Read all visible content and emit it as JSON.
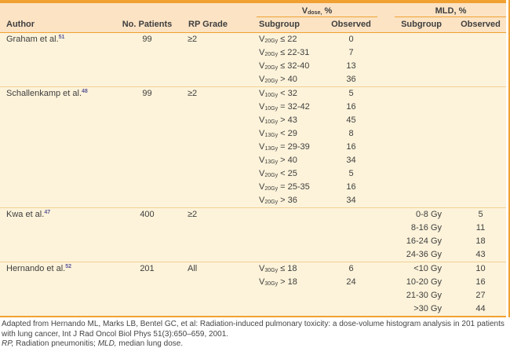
{
  "colors": {
    "accent": "#F0A132",
    "header_bg": "#FBE3C4",
    "body_bg": "#FDF3DA",
    "separator": "#F0D096",
    "ref": "#5B5898",
    "text": "#3E3E3E",
    "footer_text": "#454545"
  },
  "table": {
    "header": {
      "vdose_base": "V",
      "vdose_sub": "dose,",
      "vdose_rest": " %",
      "mld_group": "MLD, %",
      "author": "Author",
      "no_patients": "No. Patients",
      "rp_grade": "RP Grade",
      "v_subgroup": "Subgroup",
      "v_observed": "Observed",
      "mld_subgroup": "Subgroup",
      "mld_observed": "Observed"
    },
    "groups": [
      {
        "author": "Graham et al.",
        "ref": "51",
        "patients": "99",
        "rp_grade": "≥2",
        "rows": [
          {
            "v_base": "V",
            "v_sub": "20Gy",
            "v_cond": "≤ 22",
            "v_obs": "0"
          },
          {
            "v_base": "V",
            "v_sub": "20Gy",
            "v_cond": "≤ 22-31",
            "v_obs": "7"
          },
          {
            "v_base": "V",
            "v_sub": "20Gy",
            "v_cond": "≤ 32-40",
            "v_obs": "13"
          },
          {
            "v_base": "V",
            "v_sub": "20Gy",
            "v_cond": "> 40",
            "v_obs": "36"
          }
        ]
      },
      {
        "author": "Schallenkamp et al.",
        "ref": "48",
        "patients": "99",
        "rp_grade": "≥2",
        "rows": [
          {
            "v_base": "V",
            "v_sub": "10Gy",
            "v_cond": "< 32",
            "v_obs": "5"
          },
          {
            "v_base": "V",
            "v_sub": "10Gy",
            "v_cond": "= 32-42",
            "v_obs": "16"
          },
          {
            "v_base": "V",
            "v_sub": "10Gy",
            "v_cond": "> 43",
            "v_obs": "45"
          },
          {
            "v_base": "V",
            "v_sub": "13Gy",
            "v_cond": "< 29",
            "v_obs": "8"
          },
          {
            "v_base": "V",
            "v_sub": "13Gy",
            "v_cond": "= 29-39",
            "v_obs": "16"
          },
          {
            "v_base": "V",
            "v_sub": "13Gy",
            "v_cond": "> 40",
            "v_obs": "34"
          },
          {
            "v_base": "V",
            "v_sub": "20Gy",
            "v_cond": "< 25",
            "v_obs": "5"
          },
          {
            "v_base": "V",
            "v_sub": "20Gy",
            "v_cond": "= 25-35",
            "v_obs": "16"
          },
          {
            "v_base": "V",
            "v_sub": "20Gy",
            "v_cond": "> 36",
            "v_obs": "34"
          }
        ]
      },
      {
        "author": "Kwa et al.",
        "ref": "47",
        "patients": "400",
        "rp_grade": "≥2",
        "rows": [
          {
            "mld_sub": "0-8 Gy",
            "mld_obs": "5"
          },
          {
            "mld_sub": "8-16 Gy",
            "mld_obs": "11"
          },
          {
            "mld_sub": "16-24 Gy",
            "mld_obs": "18"
          },
          {
            "mld_sub": "24-36 Gy",
            "mld_obs": "43"
          }
        ]
      },
      {
        "author": "Hernando et al.",
        "ref": "52",
        "patients": "201",
        "rp_grade": "All",
        "rows": [
          {
            "v_base": "V",
            "v_sub": "30Gy",
            "v_cond": "≤ 18",
            "v_obs": "6",
            "mld_sub": "<10 Gy",
            "mld_obs": "10"
          },
          {
            "v_base": "V",
            "v_sub": "30Gy",
            "v_cond": "> 18",
            "v_obs": "24",
            "mld_sub": "10-20 Gy",
            "mld_obs": "16"
          },
          {
            "mld_sub": "21-30 Gy",
            "mld_obs": "27"
          },
          {
            "mld_sub": ">30 Gy",
            "mld_obs": "44"
          }
        ]
      }
    ]
  },
  "footer": {
    "source": "Adapted from Hernando ML, Marks LB, Bentel GC, et al: Radiation-induced pulmonary toxicity: a dose-volume histogram analysis in 201 patients with lung cancer, Int J Rad Oncol Biol Phys 51(3):650–659, 2001.",
    "abbr1": "RP,",
    "def1": " Radiation pneumonitis; ",
    "abbr2": "MLD,",
    "def2": " median lung dose."
  }
}
